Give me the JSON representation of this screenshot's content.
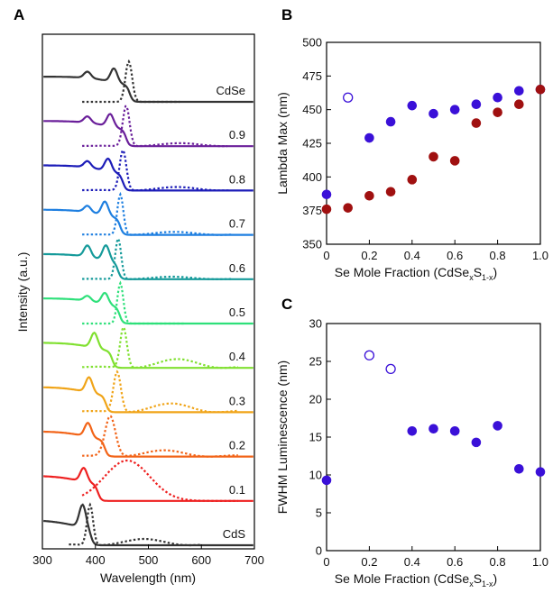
{
  "chart_data": [
    {
      "panel": "A",
      "type": "line",
      "xlabel": "Wavelength (nm)",
      "ylabel": "Intensity (a.u.)",
      "xlim": [
        300,
        700
      ],
      "xticks": [
        300,
        400,
        500,
        600,
        700
      ],
      "grid": false,
      "series": [
        {
          "name": "CdSe",
          "color": "#333333",
          "abs_peaks": [
            [
              385,
              0.25
            ],
            [
              435,
              0.55
            ]
          ],
          "abs_edge": 465,
          "pl_peak": 463,
          "pl_width": 9,
          "pl_range": [
            375,
            560
          ],
          "pl_tail": 0
        },
        {
          "name": "0.9",
          "color": "#6a1f9a",
          "abs_peaks": [
            [
              385,
              0.25
            ],
            [
              428,
              0.5
            ]
          ],
          "abs_edge": 458,
          "pl_peak": 458,
          "pl_width": 9,
          "pl_range": [
            375,
            650
          ],
          "pl_tail": 0.12
        },
        {
          "name": "0.8",
          "color": "#1c1cb8",
          "abs_peaks": [
            [
              385,
              0.25
            ],
            [
              424,
              0.5
            ]
          ],
          "abs_edge": 452,
          "pl_peak": 452,
          "pl_width": 9,
          "pl_range": [
            375,
            655
          ],
          "pl_tail": 0.14
        },
        {
          "name": "0.7",
          "color": "#1e7fe0",
          "abs_peaks": [
            [
              385,
              0.25
            ],
            [
              418,
              0.55
            ]
          ],
          "abs_edge": 447,
          "pl_peak": 447,
          "pl_width": 8,
          "pl_range": [
            375,
            660
          ],
          "pl_tail": 0.12
        },
        {
          "name": "0.6",
          "color": "#159a9a",
          "abs_peaks": [
            [
              385,
              0.45
            ],
            [
              420,
              0.6
            ]
          ],
          "abs_edge": 443,
          "pl_peak": 443,
          "pl_width": 8,
          "pl_range": [
            375,
            660
          ],
          "pl_tail": 0.1
        },
        {
          "name": "0.5",
          "color": "#2ee07a",
          "abs_peaks": [
            [
              385,
              0.2
            ],
            [
              418,
              0.45
            ]
          ],
          "abs_edge": 446,
          "pl_peak": 447,
          "pl_width": 8,
          "pl_range": [
            375,
            570
          ],
          "pl_tail": 0
        },
        {
          "name": "0.4",
          "color": "#80e030",
          "abs_peaks": [
            [
              398,
              0.6
            ]
          ],
          "abs_edge": 432,
          "pl_peak": 453,
          "pl_width": 9,
          "pl_range": [
            375,
            670
          ],
          "pl_tail": 0.35
        },
        {
          "name": "0.3",
          "color": "#f0a418",
          "abs_peaks": [
            [
              388,
              0.6
            ]
          ],
          "abs_edge": 420,
          "pl_peak": 441,
          "pl_width": 10,
          "pl_range": [
            375,
            670
          ],
          "pl_tail": 0.35
        },
        {
          "name": "0.2",
          "color": "#f26418",
          "abs_peaks": [
            [
              386,
              0.55
            ]
          ],
          "abs_edge": 418,
          "pl_peak": 428,
          "pl_width": 14,
          "pl_range": [
            375,
            670
          ],
          "pl_tail": 0.25
        },
        {
          "name": "0.1",
          "color": "#ee2020",
          "abs_peaks": [
            [
              378,
              0.55
            ]
          ],
          "abs_edge": 405,
          "pl_peak": 460,
          "pl_width": 60,
          "pl_range": [
            375,
            670
          ],
          "pl_tail": 0
        },
        {
          "name": "CdS",
          "color": "#333333",
          "abs_peaks": [
            [
              376,
              0.9
            ]
          ],
          "abs_edge": 392,
          "pl_peak": 390,
          "pl_width": 8,
          "pl_range": [
            350,
            600
          ],
          "pl_tail": 0.25
        }
      ],
      "legend": "curve labels at right"
    },
    {
      "panel": "B",
      "type": "scatter",
      "xlabel": "Se Mole Fraction (CdSe",
      "xlabel_sub1": "x",
      "xlabel_mid": "S",
      "xlabel_sub2": "1-x",
      "xlabel_end": ")",
      "ylabel": "Lambda Max (nm)",
      "xlim": [
        0,
        1.0
      ],
      "ylim": [
        350,
        500
      ],
      "xticks": [
        "0",
        "0.2",
        "0.4",
        "0.6",
        "0.8",
        "1.0"
      ],
      "yticks": [
        "350",
        "375",
        "400",
        "425",
        "450",
        "475",
        "500"
      ],
      "series": [
        {
          "color": "#3a10d8",
          "points": [
            [
              0,
              387
            ],
            [
              0.1,
              459,
              "open"
            ],
            [
              0.2,
              429
            ],
            [
              0.3,
              441
            ],
            [
              0.4,
              453
            ],
            [
              0.5,
              447
            ],
            [
              0.6,
              450
            ],
            [
              0.7,
              454
            ],
            [
              0.8,
              459
            ],
            [
              0.9,
              464
            ],
            [
              1.0,
              465
            ]
          ]
        },
        {
          "color": "#a01010",
          "points": [
            [
              0,
              376
            ],
            [
              0.1,
              377
            ],
            [
              0.2,
              386
            ],
            [
              0.3,
              389
            ],
            [
              0.4,
              398
            ],
            [
              0.5,
              415
            ],
            [
              0.6,
              412
            ],
            [
              0.7,
              440
            ],
            [
              0.8,
              448
            ],
            [
              0.9,
              454
            ],
            [
              1.0,
              465
            ]
          ]
        }
      ]
    },
    {
      "panel": "C",
      "type": "scatter",
      "xlabel": "Se Mole Fraction (CdSe",
      "xlabel_sub1": "x",
      "xlabel_mid": "S",
      "xlabel_sub2": "1-x",
      "xlabel_end": ")",
      "ylabel": "FWHM Luminescence (nm)",
      "xlim": [
        0,
        1.0
      ],
      "ylim": [
        0,
        30
      ],
      "xticks": [
        "0",
        "0.2",
        "0.4",
        "0.6",
        "0.8",
        "1.0"
      ],
      "yticks": [
        "0",
        "5",
        "10",
        "15",
        "20",
        "25",
        "30"
      ],
      "series": [
        {
          "color": "#3a10d8",
          "points": [
            [
              0,
              9.3
            ],
            [
              0.2,
              25.8,
              "open"
            ],
            [
              0.3,
              24.0,
              "open"
            ],
            [
              0.4,
              15.8
            ],
            [
              0.5,
              16.1
            ],
            [
              0.6,
              15.8
            ],
            [
              0.7,
              14.3
            ],
            [
              0.8,
              16.5
            ],
            [
              0.9,
              10.8
            ],
            [
              1.0,
              10.4
            ]
          ]
        }
      ]
    }
  ]
}
